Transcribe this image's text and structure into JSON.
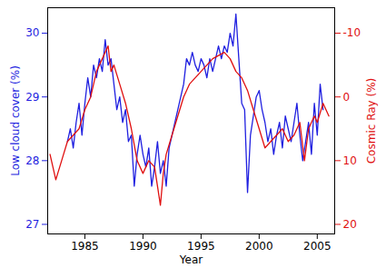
{
  "chart_data": {
    "type": "line",
    "xlabel": "Year",
    "ylabel": "Low cloud cover (%)",
    "y2label": "Cosmic Ray (%)",
    "xlim": [
      1981.8,
      2006.5
    ],
    "xticks": [
      1985,
      1990,
      1995,
      2000,
      2005
    ],
    "ylim": [
      26.85,
      30.4
    ],
    "yticks": [
      27,
      28,
      29,
      30
    ],
    "y2lim": [
      21.5,
      -14
    ],
    "y2ticks": [
      -10,
      0,
      10,
      20
    ],
    "series": [
      {
        "color": "#1f1fe0",
        "x": [
          1983.5,
          1983.75,
          1984.0,
          1984.25,
          1984.5,
          1984.75,
          1985.0,
          1985.25,
          1985.5,
          1985.75,
          1986.0,
          1986.25,
          1986.5,
          1986.75,
          1987.0,
          1987.25,
          1987.5,
          1987.75,
          1988.0,
          1988.25,
          1988.5,
          1988.75,
          1989.0,
          1989.25,
          1989.5,
          1989.75,
          1990.0,
          1990.25,
          1990.5,
          1990.75,
          1991.0,
          1991.25,
          1991.5,
          1991.75,
          1992.0,
          1992.25,
          1992.5,
          1992.75,
          1993.0,
          1993.25,
          1993.5,
          1993.75,
          1994.0,
          1994.25,
          1994.5,
          1994.75,
          1995.0,
          1995.25,
          1995.5,
          1995.75,
          1996.0,
          1996.25,
          1996.5,
          1996.75,
          1997.0,
          1997.25,
          1997.5,
          1997.75,
          1998.0,
          1998.25,
          1998.5,
          1998.75,
          1999.0,
          1999.25,
          1999.5,
          1999.75,
          2000.0,
          2000.25,
          2000.5,
          2000.75,
          2001.0,
          2001.25,
          2001.5,
          2001.75,
          2002.0,
          2002.25,
          2002.5,
          2002.75,
          2003.0,
          2003.25,
          2003.5,
          2003.75,
          2004.0,
          2004.25,
          2004.5,
          2004.75,
          2005.0,
          2005.25,
          2005.5
        ],
        "values": [
          28.3,
          28.5,
          28.2,
          28.6,
          28.9,
          28.4,
          28.9,
          29.3,
          29.0,
          29.5,
          29.3,
          29.6,
          29.4,
          29.9,
          29.5,
          29.6,
          29.2,
          28.8,
          29.0,
          28.6,
          28.8,
          28.3,
          28.4,
          27.6,
          28.1,
          28.4,
          28.1,
          27.9,
          28.2,
          27.6,
          27.9,
          28.3,
          27.8,
          28.0,
          27.6,
          28.2,
          28.4,
          28.6,
          28.8,
          29.0,
          29.2,
          29.6,
          29.5,
          29.7,
          29.5,
          29.4,
          29.6,
          29.5,
          29.3,
          29.6,
          29.4,
          29.6,
          29.8,
          29.6,
          29.8,
          29.7,
          30.0,
          29.8,
          30.3,
          29.6,
          28.9,
          28.8,
          27.5,
          28.4,
          28.7,
          29.0,
          29.1,
          28.8,
          28.6,
          28.3,
          28.5,
          28.1,
          28.4,
          28.6,
          28.2,
          28.7,
          28.5,
          28.3,
          28.6,
          28.9,
          28.4,
          28.0,
          28.3,
          28.6,
          28.1,
          28.9,
          28.4,
          29.2,
          28.8
        ]
      },
      {
        "color": "#e01010",
        "axis": "y2",
        "x": [
          1982.0,
          1982.5,
          1983.0,
          1983.5,
          1984.0,
          1984.5,
          1985.0,
          1985.5,
          1986.0,
          1986.5,
          1987.0,
          1987.25,
          1987.5,
          1988.0,
          1988.5,
          1989.0,
          1989.5,
          1990.0,
          1990.5,
          1991.0,
          1991.5,
          1991.75,
          1992.0,
          1992.5,
          1993.0,
          1993.5,
          1994.0,
          1994.5,
          1995.0,
          1995.5,
          1996.0,
          1996.5,
          1997.0,
          1997.5,
          1998.0,
          1998.5,
          1999.0,
          1999.5,
          2000.0,
          2000.5,
          2001.0,
          2001.5,
          2002.0,
          2002.5,
          2003.0,
          2003.5,
          2003.9,
          2004.25,
          2004.75,
          2005.0,
          2005.5,
          2006.0
        ],
        "values": [
          9,
          13,
          10,
          7,
          6,
          5,
          2,
          0,
          -4,
          -6,
          -8,
          -4,
          -5,
          -2,
          1,
          5,
          10,
          12,
          10,
          11,
          17,
          12,
          9,
          6,
          3,
          0,
          -2,
          -3,
          -4,
          -5,
          -6,
          -6.5,
          -7,
          -6,
          -4,
          -3,
          -1,
          2,
          5,
          8,
          7,
          6,
          5,
          7,
          6,
          4,
          10,
          5,
          3,
          4,
          1,
          3
        ]
      }
    ]
  }
}
